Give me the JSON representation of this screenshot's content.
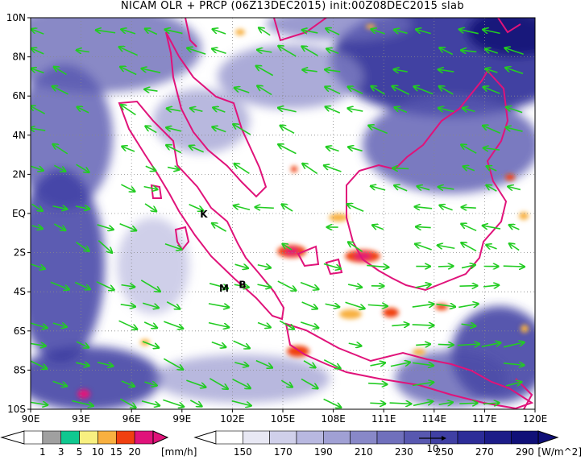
{
  "title": "NICAM OLR + PRCP (06Z13DEC2015) init:00Z08DEC2015 slab",
  "map": {
    "lon_labels": [
      "90E",
      "93E",
      "96E",
      "99E",
      "102E",
      "105E",
      "108E",
      "111E",
      "114E",
      "117E",
      "120E"
    ],
    "lat_labels": [
      "10N",
      "8N",
      "6N",
      "4N",
      "2N",
      "EQ",
      "2S",
      "4S",
      "6S",
      "8S",
      "10S"
    ],
    "markers": [
      {
        "label": "K",
        "lon": 100.3,
        "lat": -0.2
      },
      {
        "label": "M",
        "lon": 101.5,
        "lat": -4.0
      },
      {
        "label": "B",
        "lon": 102.6,
        "lat": -3.8
      }
    ],
    "colors": {
      "coastline": "#e0137a",
      "wind_vectors": "#22cc22",
      "grid": "#888888"
    }
  },
  "precip_colorbar": {
    "colors": [
      "#ffffff",
      "#a0a0a0",
      "#10c890",
      "#f8f080",
      "#f8b040",
      "#f04010",
      "#e0137a"
    ],
    "labels": [
      "1",
      "3",
      "5",
      "10",
      "15",
      "20"
    ],
    "unit": "[mm/h]"
  },
  "olr_colorbar": {
    "colors": [
      "#ffffff",
      "#e8e8f4",
      "#d0d0ea",
      "#b8b8e0",
      "#a0a0d4",
      "#8888c8",
      "#7070bc",
      "#5858b0",
      "#4040a4",
      "#2c2c98",
      "#1c1c88",
      "#101078"
    ],
    "labels": [
      "150",
      "170",
      "190",
      "210",
      "230",
      "250",
      "270",
      "290"
    ],
    "unit": "[W/m^2]",
    "reference_vector_label": "10"
  }
}
